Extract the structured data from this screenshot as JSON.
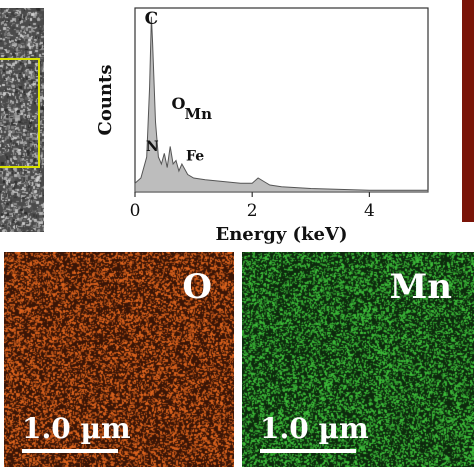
{
  "sem_image": {
    "colors": {
      "base": "#4a4a4a",
      "box": "#d8e000"
    }
  },
  "chart_data": {
    "type": "area",
    "ylabel": "Counts",
    "xlabel": "Energy (keV)",
    "xlim": [
      0,
      5
    ],
    "xticks": [
      "0",
      "2",
      "4"
    ],
    "x": [
      0,
      0.1,
      0.2,
      0.25,
      0.28,
      0.3,
      0.35,
      0.4,
      0.45,
      0.5,
      0.55,
      0.6,
      0.65,
      0.7,
      0.75,
      0.8,
      0.9,
      1.0,
      1.2,
      1.5,
      1.8,
      2.0,
      2.1,
      2.2,
      2.3,
      2.5,
      3.0,
      4.0,
      5.0
    ],
    "y": [
      5,
      8,
      20,
      60,
      100,
      85,
      40,
      20,
      16,
      22,
      14,
      26,
      16,
      18,
      12,
      16,
      10,
      8,
      7,
      6,
      5,
      5,
      8,
      6,
      4,
      3,
      2,
      1,
      1
    ],
    "ylim": [
      0,
      105
    ],
    "peaks": [
      {
        "label": "C",
        "x": 0.28
      },
      {
        "label": "O",
        "x": 0.52
      },
      {
        "label": "Mn",
        "x": 0.64
      },
      {
        "label": "N",
        "x": 0.39
      },
      {
        "label": "Fe",
        "x": 0.7
      }
    ],
    "colors": {
      "fill": "#bdbdbd",
      "line": "#555555"
    }
  },
  "maps": [
    {
      "element": "O",
      "scale": "1.0 µm",
      "colors": {
        "background": "#3a1506",
        "dots": "#e0651e"
      }
    },
    {
      "element": "Mn",
      "scale": "1.0 µm",
      "colors": {
        "background": "#0d2a0d",
        "dots": "#3dbf3a"
      }
    }
  ],
  "red_strip": {
    "color": "#7a1408"
  }
}
